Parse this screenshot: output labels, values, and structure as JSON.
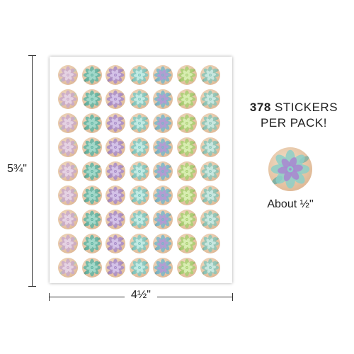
{
  "dimensions": {
    "height_label": "5¾\"",
    "width_label": "4½\""
  },
  "pack": {
    "count": "378",
    "line1_rest": "STICKERS",
    "line2": "PER PACK!"
  },
  "sample": {
    "size_label": "About ½\""
  },
  "sheet": {
    "rows": 9,
    "columns": 7,
    "column_palette": [
      {
        "petal": "#c9a9c9",
        "center": "#e8d6e4",
        "leaf": "#a7c8b8"
      },
      {
        "petal": "#5fb4a3",
        "center": "#a7dccd",
        "leaf": "#3e8f7e"
      },
      {
        "petal": "#a78bc8",
        "center": "#d7c6ea",
        "leaf": "#8a6fb0"
      },
      {
        "petal": "#7fc8c2",
        "center": "#c7ece6",
        "leaf": "#5aa9a2"
      },
      {
        "petal": "#79b6c9",
        "center": "#b69ad3",
        "leaf": "#5a97ab"
      },
      {
        "petal": "#a8cf72",
        "center": "#dcefb6",
        "leaf": "#7fae4f"
      },
      {
        "petal": "#8bc6b9",
        "center": "#cde9e2",
        "leaf": "#6aa89a"
      }
    ]
  },
  "colors": {
    "wood": "#e4c2a1",
    "text": "#222222",
    "line": "#333333"
  }
}
